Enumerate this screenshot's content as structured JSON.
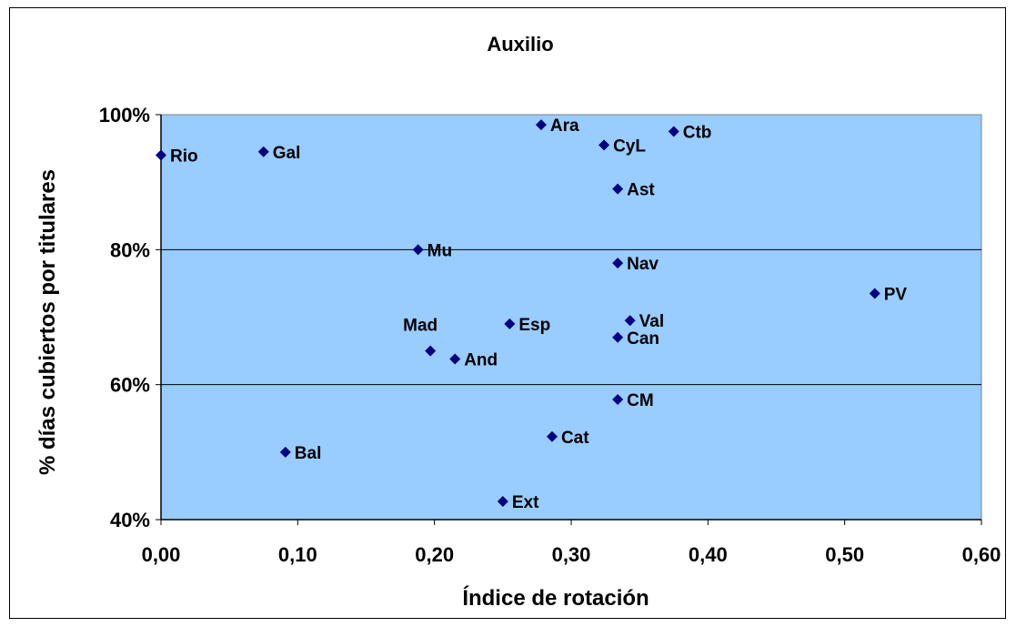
{
  "chart_data": {
    "type": "scatter",
    "title": "Auxilio",
    "xlabel": "Índice de rotación",
    "ylabel": "% días cubiertos por titulares",
    "xlim": [
      0,
      0.6
    ],
    "ylim": [
      0.4,
      1.0
    ],
    "x_ticks": [
      "0,00",
      "0,10",
      "0,20",
      "0,30",
      "0,40",
      "0,50",
      "0,60"
    ],
    "y_ticks": [
      "40%",
      "60%",
      "80%",
      "100%"
    ],
    "grid": "horizontal",
    "plot_background": "#99ccff",
    "marker_color": "#000080",
    "points": [
      {
        "label": "Rio",
        "x": 0.0,
        "y": 0.94
      },
      {
        "label": "Gal",
        "x": 0.075,
        "y": 0.945
      },
      {
        "label": "Ara",
        "x": 0.278,
        "y": 0.985
      },
      {
        "label": "CyL",
        "x": 0.324,
        "y": 0.955
      },
      {
        "label": "Ctb",
        "x": 0.375,
        "y": 0.975
      },
      {
        "label": "Ast",
        "x": 0.334,
        "y": 0.89
      },
      {
        "label": "Mu",
        "x": 0.188,
        "y": 0.8
      },
      {
        "label": "Nav",
        "x": 0.334,
        "y": 0.78
      },
      {
        "label": "PV",
        "x": 0.522,
        "y": 0.735
      },
      {
        "label": "Esp",
        "x": 0.255,
        "y": 0.69
      },
      {
        "label": "Val",
        "x": 0.343,
        "y": 0.695
      },
      {
        "label": "Can",
        "x": 0.334,
        "y": 0.67
      },
      {
        "label": "Mad",
        "x": 0.197,
        "y": 0.65
      },
      {
        "label": "And",
        "x": 0.215,
        "y": 0.638
      },
      {
        "label": "CM",
        "x": 0.334,
        "y": 0.578
      },
      {
        "label": "Cat",
        "x": 0.286,
        "y": 0.523
      },
      {
        "label": "Bal",
        "x": 0.091,
        "y": 0.5
      },
      {
        "label": "Ext",
        "x": 0.25,
        "y": 0.427
      }
    ]
  }
}
